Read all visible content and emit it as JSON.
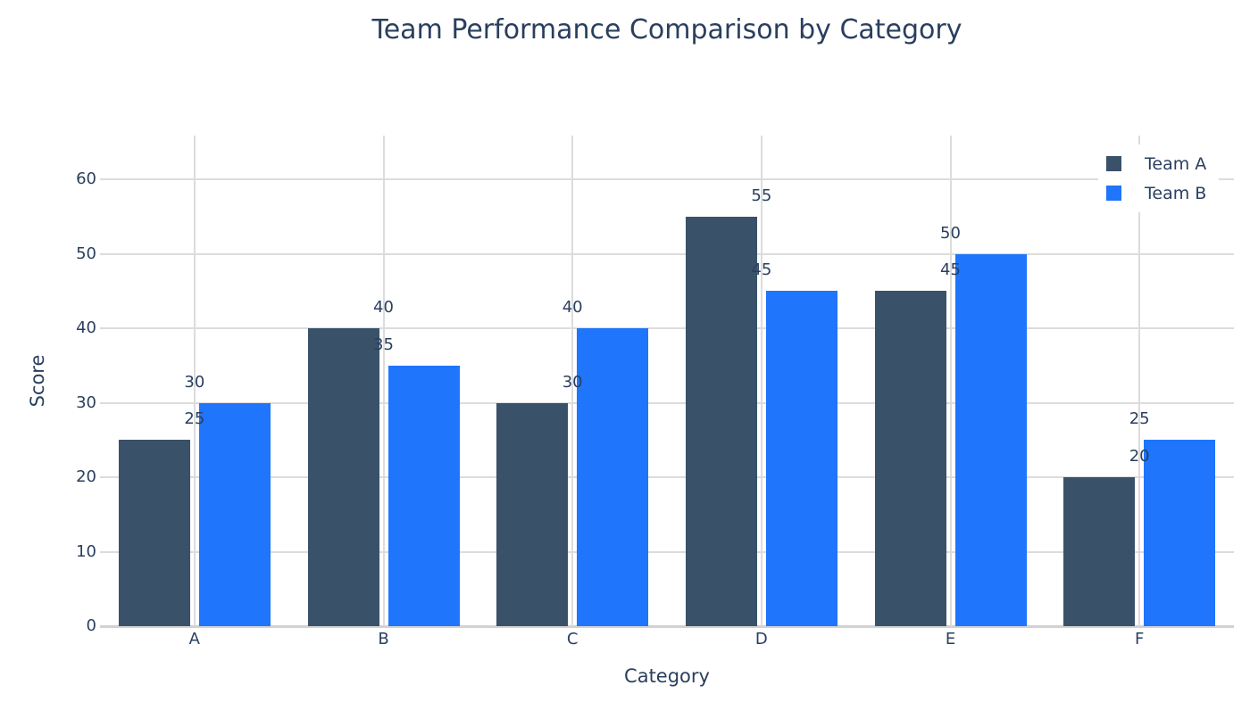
{
  "chart_data": {
    "type": "bar",
    "title": "Team Performance Comparison by Category",
    "xlabel": "Category",
    "ylabel": "Score",
    "categories": [
      "A",
      "B",
      "C",
      "D",
      "E",
      "F"
    ],
    "series": [
      {
        "name": "Team A",
        "color": "#3a5269",
        "values": [
          25,
          40,
          30,
          55,
          45,
          20
        ]
      },
      {
        "name": "Team B",
        "color": "#1f75fb",
        "values": [
          30,
          35,
          40,
          45,
          50,
          25
        ]
      }
    ],
    "yticks": [
      0,
      10,
      20,
      30,
      40,
      50,
      60
    ],
    "ylim": [
      0,
      65.8
    ],
    "grid": true,
    "bar_value_labels": true,
    "legend_position": "top-right"
  },
  "colors": {
    "text": "#2a3f5f",
    "gridline": "#dcdcdc",
    "axis_line": "#d2d2d2",
    "background": "#ffffff"
  }
}
